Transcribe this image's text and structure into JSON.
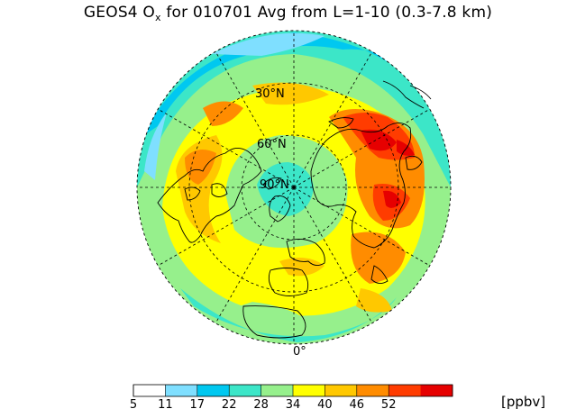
{
  "title": {
    "prefix": "GEOS4 O",
    "subscript": "x",
    "suffix": " for 010701 Avg from L=1-10 (0.3-7.8 km)"
  },
  "map": {
    "projection": "north-polar-stereographic",
    "lat_labels": [
      "30°N",
      "60°N",
      "90°N"
    ],
    "lon_labels": [
      "0°"
    ]
  },
  "colorbar": {
    "units": "[ppbv]",
    "ticks": [
      "5",
      "11",
      "17",
      "22",
      "28",
      "34",
      "40",
      "46",
      "52"
    ],
    "colors": [
      "#ffffff",
      "#7fdfff",
      "#00c8f0",
      "#3ce6c8",
      "#96f08c",
      "#ffff00",
      "#ffc800",
      "#ff8c00",
      "#ff3c00",
      "#e60000"
    ]
  },
  "palette": {
    "white": "#ffffff",
    "lightcyan": "#7fdfff",
    "cyan": "#00c8f0",
    "aqua": "#3ce6c8",
    "green": "#96f08c",
    "yellow": "#ffff00",
    "gold": "#ffc800",
    "orange": "#ff8c00",
    "redorange": "#ff3c00",
    "red": "#e60000"
  }
}
